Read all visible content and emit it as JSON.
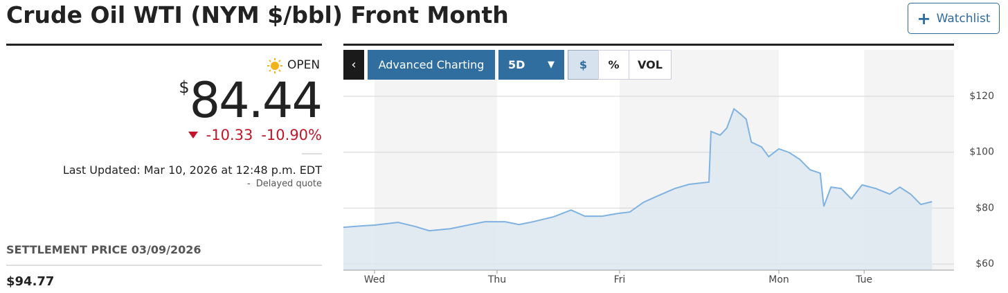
{
  "header": {
    "title": "Crude Oil WTI (NYM $/bbl) Front Month",
    "watchlist": "Watchlist"
  },
  "quote": {
    "status": "OPEN",
    "currency": "$",
    "price": "84.44",
    "change": "-10.33",
    "change_percent": "-10.90%",
    "last_updated": "Last Updated: Mar 10, 2026 at 12:48 p.m. EDT",
    "delay_note": "-  Delayed quote"
  },
  "settlement": {
    "label": "SETTLEMENT PRICE 03/09/2026",
    "value": "$94.77"
  },
  "toolbar": {
    "advanced": "Advanced Charting",
    "range": "5D",
    "dollar": "$",
    "percent": "%",
    "volume": "VOL"
  },
  "chart_data": {
    "type": "line",
    "area": true,
    "color": "#7fb2e0",
    "fill": "#dde7ef",
    "x": [
      -6.1,
      -2.8,
      0,
      4.6,
      8.0,
      10.7,
      14.8,
      18.8,
      21.6,
      25.6,
      28.3,
      31.0,
      35.1,
      38.5,
      41.2,
      44.6,
      47.7,
      50.0,
      52.7,
      55.4,
      58.8,
      61.6,
      65.5,
      65.9,
      67.7,
      69.0,
      70.4,
      71.7,
      72.8,
      73.8,
      75.8,
      77.2,
      79.2,
      81.2,
      83.3,
      85.3,
      87.3,
      88.0,
      89.4,
      91.4,
      93.4,
      95.5,
      98.2,
      100.9,
      102.9,
      105.0,
      107.0,
      109.2
    ],
    "values": [
      73.1,
      73.6,
      73.9,
      74.9,
      73.4,
      71.9,
      72.6,
      74.1,
      75.1,
      75.1,
      74.1,
      75.1,
      76.9,
      79.3,
      77.1,
      77.1,
      78.1,
      78.6,
      82.1,
      84.3,
      87.0,
      88.5,
      89.3,
      107.4,
      106.1,
      108.6,
      115.5,
      113.6,
      111.8,
      103.6,
      101.9,
      98.4,
      101.2,
      99.9,
      97.4,
      93.7,
      92.5,
      80.6,
      87.5,
      87.0,
      83.3,
      88.3,
      87.0,
      85.0,
      87.5,
      85.0,
      81.3,
      82.3
    ],
    "xlim": [
      -6.1,
      113.5
    ],
    "xticks": [
      {
        "value": 0,
        "label": "Wed"
      },
      {
        "value": 24,
        "label": "Thu"
      },
      {
        "value": 48,
        "label": "Fri"
      },
      {
        "value": 79.2,
        "label": "Mon"
      },
      {
        "value": 95.9,
        "label": "Tue"
      }
    ],
    "ylim": [
      57.8,
      136.6
    ],
    "yticks": [
      {
        "value": 60,
        "label": "$60"
      },
      {
        "value": 80,
        "label": "$80"
      },
      {
        "value": 100,
        "label": "$100"
      },
      {
        "value": 120,
        "label": "$120"
      }
    ],
    "grid": true
  }
}
